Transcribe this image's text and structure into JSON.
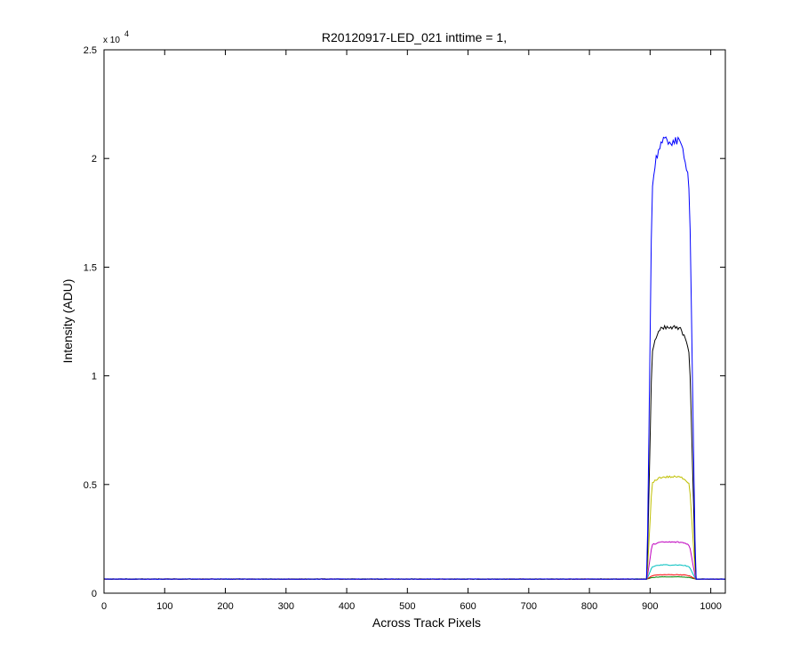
{
  "chart_data": {
    "type": "line",
    "title": "R20120917-LED_021 inttime = 1,",
    "xlabel": "Across Track Pixels",
    "ylabel": "Intensity (ADU)",
    "y_exponent_base": "x 10",
    "y_exponent_power": "4",
    "xlim": [
      0,
      1024
    ],
    "ylim": [
      0,
      25000
    ],
    "x_ticks": [
      0,
      100,
      200,
      300,
      400,
      500,
      600,
      700,
      800,
      900,
      1000
    ],
    "x_tick_labels": [
      "0",
      "100",
      "200",
      "300",
      "400",
      "500",
      "600",
      "700",
      "800",
      "900",
      "1000"
    ],
    "y_ticks": [
      0,
      5000,
      10000,
      15000,
      20000,
      25000
    ],
    "y_tick_labels": [
      "0",
      "0.5",
      "1",
      "1.5",
      "2",
      "2.5"
    ],
    "grid": false,
    "legend": "none",
    "pulse": {
      "rise_start": 895,
      "rise_end": 903,
      "fall_start": 965,
      "fall_end": 975
    },
    "baseline": 650,
    "series": [
      {
        "color": "#0000ff",
        "plateau": 20800,
        "edge_level": 18500,
        "noise": 450
      },
      {
        "color": "#000000",
        "plateau": 12200,
        "edge_level": 11000,
        "noise": 250
      },
      {
        "color": "#bfbf00",
        "plateau": 5350,
        "edge_level": 5000,
        "noise": 100
      },
      {
        "color": "#bf00bf",
        "plateau": 2350,
        "edge_level": 2200,
        "noise": 60
      },
      {
        "color": "#00bfbf",
        "plateau": 1300,
        "edge_level": 1200,
        "noise": 40
      },
      {
        "color": "#ff0000",
        "plateau": 850,
        "edge_level": 800,
        "noise": 25
      },
      {
        "color": "#008000",
        "plateau": 750,
        "edge_level": 720,
        "noise": 20
      }
    ]
  }
}
